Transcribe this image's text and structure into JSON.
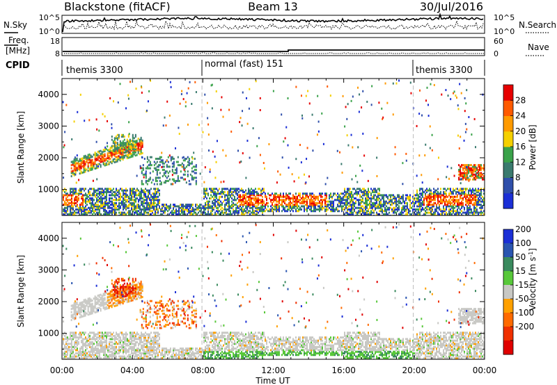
{
  "header": {
    "station": "Blackstone (fitACF)",
    "beam": "Beam 13",
    "date": "30/Jul/2016"
  },
  "noise_panel": {
    "left_label": "N.Sky",
    "right_label": "N.Search",
    "left_ticks": [
      "10^5",
      "10^0"
    ],
    "right_ticks": [
      "10^5",
      "10^0"
    ]
  },
  "freq_panel": {
    "left_label_line1": "Freq.",
    "left_label_line2": "[MHz]",
    "right_label": "Nave",
    "left_ticks": [
      "18",
      "8"
    ],
    "right_ticks": [
      "60",
      "0"
    ]
  },
  "cpid_panel": {
    "label": "CPID",
    "segments": [
      {
        "label": "themis 3300",
        "start_hour": 0,
        "end_hour": 7.95
      },
      {
        "label": "normal (fast) 151",
        "start_hour": 7.95,
        "end_hour": 19.95
      },
      {
        "label": "themis 3300",
        "start_hour": 19.95,
        "end_hour": 24
      }
    ]
  },
  "colors": {
    "power_scale": [
      "#1b2fd6",
      "#2f4faa",
      "#3a7a6e",
      "#3aa24a",
      "#f5d000",
      "#ff9a00",
      "#ff5a00",
      "#e60000"
    ],
    "velocity_scale": [
      "#1b2fd6",
      "#2a55b0",
      "#3a8a5e",
      "#58c83a",
      "#c8c8c4",
      "#ffa000",
      "#ff6a00",
      "#f03000",
      "#e00000"
    ]
  },
  "chart_data": [
    {
      "type": "heatmap",
      "title": "",
      "xlabel": "",
      "ylabel": "Slant Range [km]",
      "xlim": [
        0,
        24
      ],
      "ylim": [
        180,
        4500
      ],
      "x_ticks": [],
      "y_ticks": [
        "1000",
        "2000",
        "3000",
        "4000"
      ],
      "colorbar": {
        "label": "Power [dB]",
        "range": [
          0,
          32
        ],
        "tick_labels": [
          "4",
          "8",
          "12",
          "16",
          "20",
          "24",
          "28"
        ]
      },
      "regions": [
        {
          "name": "near-range echoes",
          "x": [
            0.0,
            24.0
          ],
          "y": [
            200,
            1200
          ],
          "value": 26
        },
        {
          "name": "far-range band",
          "x": [
            0.5,
            4.5
          ],
          "y": [
            1400,
            2600
          ],
          "value": 24
        },
        {
          "name": "evening band",
          "x": [
            22.5,
            24.0
          ],
          "y": [
            1400,
            1800
          ],
          "value": 20
        }
      ]
    },
    {
      "type": "heatmap",
      "title": "",
      "xlabel": "Time UT",
      "ylabel": "Slant Range [km]",
      "xlim": [
        0,
        24
      ],
      "ylim": [
        180,
        4500
      ],
      "x_ticks": [
        "00:00",
        "04:00",
        "08:00",
        "12:00",
        "16:00",
        "20:00",
        "00:00"
      ],
      "y_ticks": [
        "1000",
        "2000",
        "3000",
        "4000"
      ],
      "colorbar": {
        "label": "Velocity [m s",
        "label_sup": "-1",
        "label_end": "]",
        "range": [
          -250,
          250
        ],
        "tick_labels": [
          "200",
          "100",
          "50",
          "15",
          "-15",
          "-50",
          "-100",
          "-200"
        ]
      },
      "regions": [
        {
          "name": "near-range echoes",
          "x": [
            0.0,
            24.0
          ],
          "y": [
            200,
            1200
          ],
          "value": 0
        },
        {
          "name": "far-range band",
          "x": [
            0.5,
            7.5
          ],
          "y": [
            1200,
            2600
          ],
          "value": -60
        },
        {
          "name": "evening band",
          "x": [
            22.5,
            24.0
          ],
          "y": [
            1400,
            1900
          ],
          "value": 0
        }
      ]
    }
  ]
}
